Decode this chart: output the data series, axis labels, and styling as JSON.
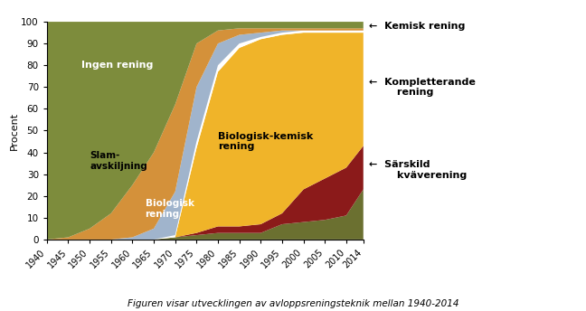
{
  "caption": "Figuren visar utvecklingen av avloppsreningsteknik mellan 1940-2014",
  "ylabel": "Procent",
  "x_years": [
    1940,
    1945,
    1950,
    1955,
    1960,
    1965,
    1970,
    1975,
    1980,
    1985,
    1990,
    1995,
    2000,
    2005,
    2010,
    2014
  ],
  "ingen_rening": [
    100,
    99,
    95,
    88,
    75,
    60,
    38,
    10,
    4,
    3,
    3,
    3,
    3,
    3,
    3,
    3
  ],
  "slam_avskiljning": [
    0,
    1,
    5,
    12,
    24,
    35,
    40,
    20,
    6,
    3,
    2,
    1,
    1,
    1,
    1,
    1
  ],
  "biologisk_rening": [
    0,
    0,
    0,
    0,
    1,
    5,
    20,
    25,
    10,
    4,
    2,
    1,
    0,
    0,
    0,
    0
  ],
  "white_gap": [
    0,
    0,
    0,
    0,
    0,
    0,
    1,
    3,
    3,
    2,
    1,
    1,
    1,
    1,
    1,
    1
  ],
  "biologisk_kemisk": [
    0,
    0,
    0,
    0,
    0,
    0,
    0,
    39,
    71,
    82,
    85,
    82,
    72,
    67,
    62,
    52
  ],
  "kompletterande": [
    0,
    0,
    0,
    0,
    0,
    0,
    0,
    1,
    3,
    3,
    4,
    5,
    15,
    19,
    22,
    20
  ],
  "sarskild_kvav": [
    0,
    0,
    0,
    0,
    0,
    0,
    1,
    2,
    3,
    3,
    3,
    7,
    8,
    9,
    11,
    23
  ],
  "color_ingen": "#7d8c3c",
  "color_slam": "#d4913a",
  "color_bio": "#a0b4cc",
  "color_white": "#ffffff",
  "color_biokemisk": "#f0b429",
  "color_komplett": "#8b1a1a",
  "color_sarskild": "#6b7030",
  "label_ingen": "Ingen rening",
  "label_slam": "Slam-\navskiljning",
  "label_bio": "Biologisk\nrening",
  "label_biokemisk": "Biologisk-kemisk\nrening",
  "ann_kemisk": "←  Kemisk rening",
  "ann_komplett": "←  Kompletterande\n        rening",
  "ann_sarskild": "←  Särskild\n        kväverening",
  "background": "#ffffff",
  "ylim": [
    0,
    100
  ],
  "xlim": [
    1940,
    2014
  ],
  "xticks": [
    1940,
    1945,
    1950,
    1955,
    1960,
    1965,
    1970,
    1975,
    1980,
    1985,
    1990,
    1995,
    2000,
    2005,
    2010,
    2014
  ],
  "yticks": [
    0,
    10,
    20,
    30,
    40,
    50,
    60,
    70,
    80,
    90,
    100
  ]
}
